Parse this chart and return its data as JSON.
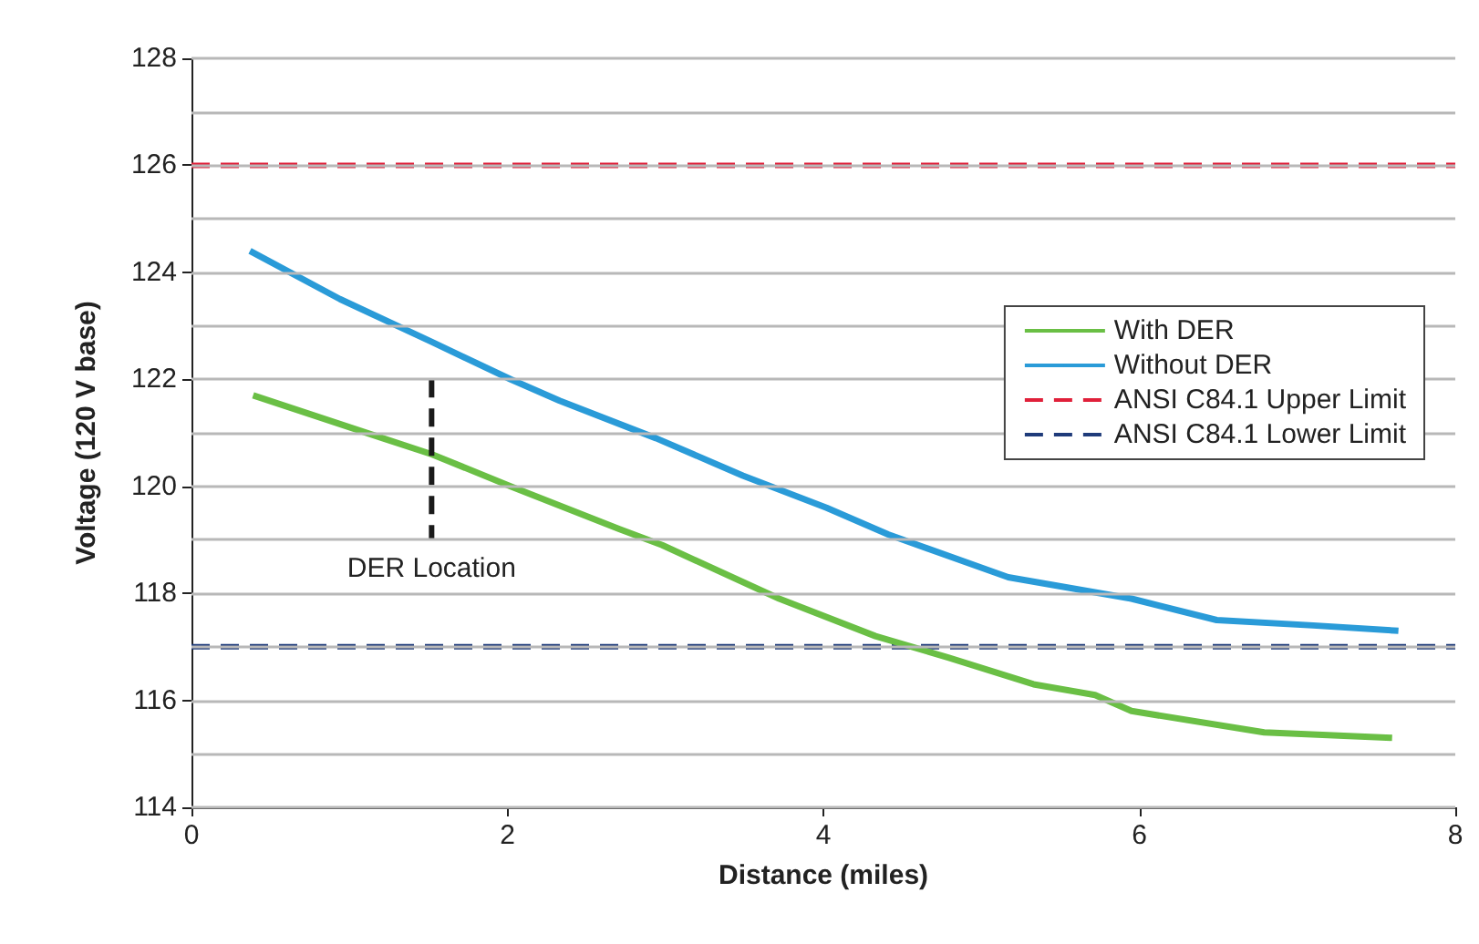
{
  "chart_data": {
    "type": "line",
    "xlabel": "Distance (miles)",
    "ylabel": "Voltage (120 V base)",
    "xlim": [
      0,
      8
    ],
    "xticks": [
      0,
      2,
      4,
      6,
      8
    ],
    "ylim": [
      114,
      128
    ],
    "yticks": [
      114,
      {
        "value": 115,
        "label": null
      },
      116,
      {
        "value": 117,
        "label": null
      },
      118,
      {
        "value": 119,
        "label": null
      },
      120,
      {
        "value": 121,
        "label": null
      },
      122,
      {
        "value": 123,
        "label": null
      },
      124,
      {
        "value": 125,
        "label": null
      },
      126,
      {
        "value": 127,
        "label": null
      },
      128
    ],
    "grid": "y",
    "legend": "right",
    "marker": "none",
    "series": [
      {
        "name": "With DER",
        "color": "#6abf45",
        "x": [
          0.39,
          1.21,
          1.52,
          2.02,
          2.71,
          2.98,
          3.72,
          4.33,
          4.79,
          5.33,
          5.72,
          5.95,
          6.79,
          7.6
        ],
        "values": [
          121.7,
          120.9,
          120.6,
          120.0,
          119.2,
          118.9,
          117.9,
          117.2,
          116.8,
          116.3,
          116.1,
          115.8,
          115.4,
          115.3
        ]
      },
      {
        "name": "Without DER",
        "color": "#2a9bd8",
        "x": [
          0.37,
          0.94,
          1.52,
          2.02,
          2.33,
          2.94,
          3.49,
          4.02,
          4.41,
          5.17,
          5.95,
          6.49,
          7.1,
          7.64
        ],
        "values": [
          124.4,
          123.5,
          122.7,
          122.0,
          121.6,
          120.9,
          120.2,
          119.6,
          119.1,
          118.3,
          117.9,
          117.5,
          117.4,
          117.3
        ]
      },
      {
        "color": "#1a1a1a",
        "line_style": "dashed",
        "x": [
          1.52,
          1.52
        ],
        "values": [
          122.0,
          119.0
        ]
      }
    ],
    "ref_lines": [
      {
        "axis": "y",
        "value": 126,
        "label": "ANSI C84.1 Upper Limit",
        "color": "#e0203a",
        "line_style": "dashed"
      },
      {
        "axis": "y",
        "value": 117,
        "label": "ANSI C84.1 Lower Limit",
        "color": "#1f3b7a",
        "line_style": "dashed"
      }
    ],
    "annotations": [
      "DER Location"
    ]
  }
}
